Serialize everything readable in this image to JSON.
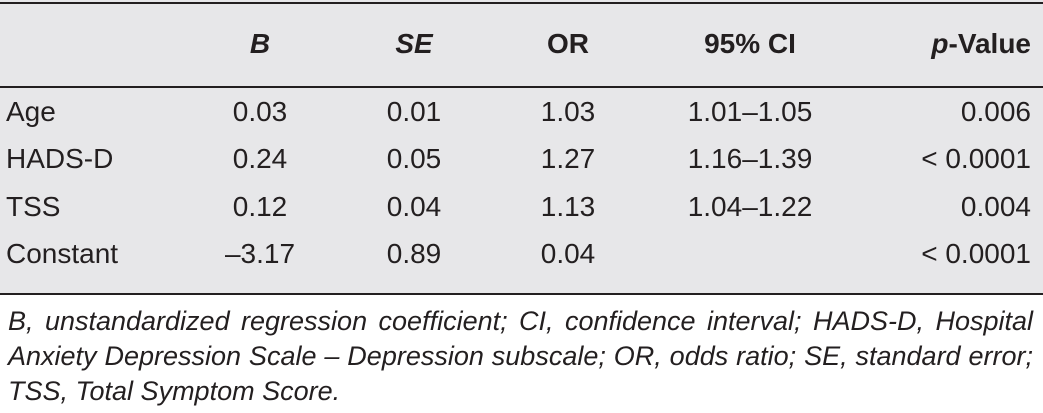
{
  "table": {
    "headers": {
      "label": "",
      "b": "B",
      "se": "SE",
      "or": "OR",
      "ci": "95% CI",
      "p_italic": "p",
      "p_rest": "-Value"
    },
    "rows": [
      {
        "label": "Age",
        "b": "0.03",
        "se": "0.01",
        "or": "1.03",
        "ci": "1.01–1.05",
        "p": "0.006"
      },
      {
        "label": "HADS-D",
        "b": "0.24",
        "se": "0.05",
        "or": "1.27",
        "ci": "1.16–1.39",
        "p": "< 0.0001"
      },
      {
        "label": "TSS",
        "b": "0.12",
        "se": "0.04",
        "or": "1.13",
        "ci": "1.04–1.22",
        "p": "0.004"
      },
      {
        "label": "Constant",
        "b": "–3.17",
        "se": "0.89",
        "or": "0.04",
        "ci": "",
        "p": "< 0.0001"
      }
    ]
  },
  "footnote": "B, unstandardized regression coefficient; CI, confidence interval; HADS-D, Hospital Anxiety Depression Scale – Depression subscale; OR, odds ratio; SE, standard error; TSS, Total Symptom Score."
}
